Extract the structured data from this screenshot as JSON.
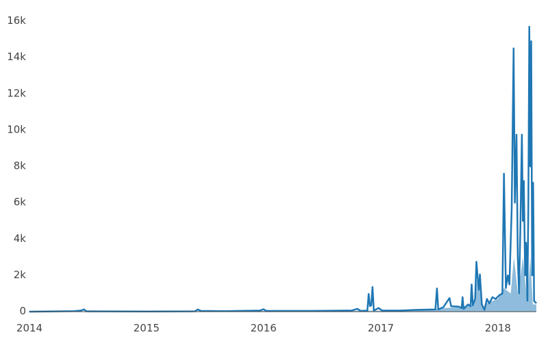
{
  "chart_data": {
    "type": "area",
    "title": "",
    "xlabel": "",
    "ylabel": "",
    "xlim": [
      "2014-01-01",
      "2018-05-01"
    ],
    "ylim": [
      0,
      16000
    ],
    "grid": false,
    "legend": "none",
    "x_ticks": [
      "2014",
      "2015",
      "2016",
      "2017",
      "2018"
    ],
    "x_tick_dates": [
      "2014-01-01",
      "2015-01-01",
      "2016-01-01",
      "2017-01-01",
      "2018-01-01"
    ],
    "y_ticks": [
      0,
      2000,
      4000,
      6000,
      8000,
      10000,
      12000,
      14000,
      16000
    ],
    "y_tick_labels": [
      "0",
      "2k",
      "4k",
      "6k",
      "8k",
      "10k",
      "12k",
      "14k",
      "16k"
    ],
    "colors": {
      "line": "#1f77b4",
      "fill": "#8fbcdc"
    },
    "series": [
      {
        "style": "line",
        "points": [
          [
            "2014-01-01",
            0
          ],
          [
            "2014-05-20",
            30
          ],
          [
            "2014-06-10",
            60
          ],
          [
            "2014-06-20",
            120
          ],
          [
            "2014-06-28",
            20
          ],
          [
            "2015-01-01",
            10
          ],
          [
            "2015-06-01",
            20
          ],
          [
            "2015-06-10",
            120
          ],
          [
            "2015-06-20",
            40
          ],
          [
            "2015-09-01",
            30
          ],
          [
            "2015-12-20",
            60
          ],
          [
            "2016-01-01",
            130
          ],
          [
            "2016-01-10",
            40
          ],
          [
            "2016-06-01",
            40
          ],
          [
            "2016-10-01",
            60
          ],
          [
            "2016-10-20",
            160
          ],
          [
            "2016-10-30",
            40
          ],
          [
            "2016-11-20",
            60
          ],
          [
            "2016-11-24",
            980
          ],
          [
            "2016-11-28",
            300
          ],
          [
            "2016-12-02",
            350
          ],
          [
            "2016-12-06",
            1360
          ],
          [
            "2016-12-10",
            60
          ],
          [
            "2016-12-25",
            200
          ],
          [
            "2017-01-05",
            60
          ],
          [
            "2017-03-01",
            60
          ],
          [
            "2017-05-01",
            100
          ],
          [
            "2017-06-20",
            120
          ],
          [
            "2017-06-25",
            1280
          ],
          [
            "2017-06-29",
            120
          ],
          [
            "2017-07-15",
            250
          ],
          [
            "2017-08-03",
            750
          ],
          [
            "2017-08-08",
            300
          ],
          [
            "2017-09-01",
            280
          ],
          [
            "2017-09-10",
            200
          ],
          [
            "2017-09-13",
            800
          ],
          [
            "2017-09-16",
            150
          ],
          [
            "2017-09-30",
            400
          ],
          [
            "2017-10-08",
            300
          ],
          [
            "2017-10-11",
            1500
          ],
          [
            "2017-10-15",
            350
          ],
          [
            "2017-10-22",
            700
          ],
          [
            "2017-10-26",
            2750
          ],
          [
            "2017-10-30",
            1900
          ],
          [
            "2017-11-03",
            1200
          ],
          [
            "2017-11-06",
            2050
          ],
          [
            "2017-11-12",
            400
          ],
          [
            "2017-11-20",
            100
          ],
          [
            "2017-11-28",
            700
          ],
          [
            "2017-12-05",
            450
          ],
          [
            "2017-12-15",
            800
          ],
          [
            "2017-12-25",
            700
          ],
          [
            "2018-01-05",
            900
          ],
          [
            "2018-01-15",
            1000
          ],
          [
            "2018-01-20",
            7600
          ],
          [
            "2018-01-26",
            1300
          ],
          [
            "2018-02-01",
            2000
          ],
          [
            "2018-02-06",
            1500
          ],
          [
            "2018-02-13",
            5700
          ],
          [
            "2018-02-19",
            14500
          ],
          [
            "2018-02-23",
            6000
          ],
          [
            "2018-02-28",
            9750
          ],
          [
            "2018-03-04",
            3000
          ],
          [
            "2018-03-08",
            1000
          ],
          [
            "2018-03-12",
            4500
          ],
          [
            "2018-03-17",
            9750
          ],
          [
            "2018-03-20",
            5000
          ],
          [
            "2018-03-23",
            7200
          ],
          [
            "2018-03-27",
            2000
          ],
          [
            "2018-03-30",
            3800
          ],
          [
            "2018-04-03",
            600
          ],
          [
            "2018-04-06",
            5800
          ],
          [
            "2018-04-09",
            15700
          ],
          [
            "2018-04-12",
            8000
          ],
          [
            "2018-04-15",
            14900
          ],
          [
            "2018-04-18",
            2000
          ],
          [
            "2018-04-21",
            7100
          ],
          [
            "2018-04-24",
            600
          ],
          [
            "2018-04-28",
            500
          ],
          [
            "2018-05-01",
            500
          ]
        ]
      },
      {
        "style": "fill",
        "points": [
          [
            "2014-01-01",
            0
          ],
          [
            "2017-05-01",
            60
          ],
          [
            "2017-07-15",
            200
          ],
          [
            "2017-09-01",
            250
          ],
          [
            "2017-10-20",
            400
          ],
          [
            "2017-10-28",
            1800
          ],
          [
            "2017-11-06",
            1200
          ],
          [
            "2017-11-15",
            200
          ],
          [
            "2017-12-01",
            500
          ],
          [
            "2018-01-01",
            700
          ],
          [
            "2018-01-20",
            1300
          ],
          [
            "2018-02-10",
            1000
          ],
          [
            "2018-02-20",
            3000
          ],
          [
            "2018-03-05",
            900
          ],
          [
            "2018-03-20",
            3000
          ],
          [
            "2018-04-03",
            500
          ],
          [
            "2018-04-12",
            3000
          ],
          [
            "2018-04-20",
            400
          ],
          [
            "2018-05-01",
            400
          ]
        ]
      }
    ]
  }
}
